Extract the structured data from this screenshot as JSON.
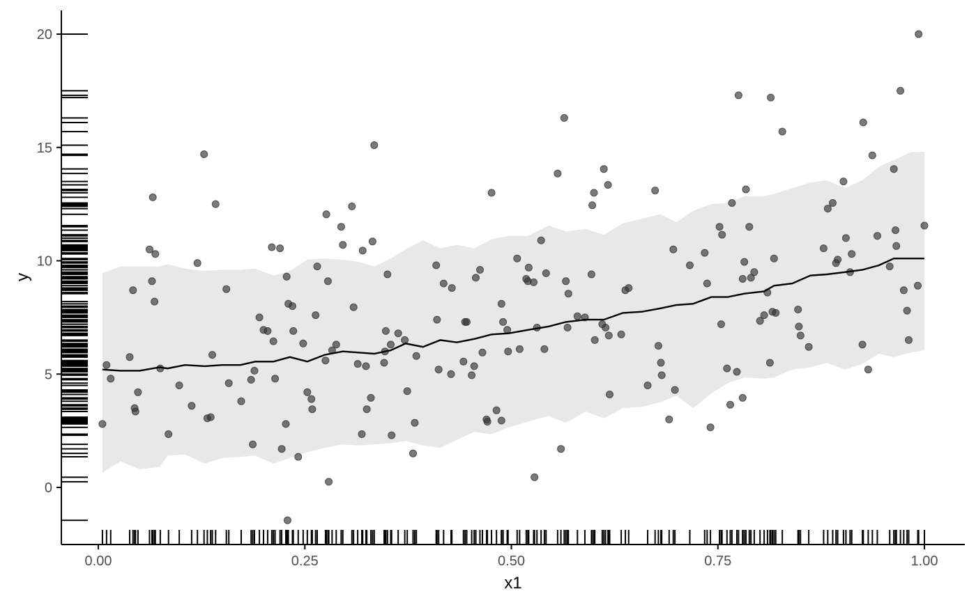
{
  "chart_data": {
    "type": "scatter",
    "title": "",
    "xlabel": "x1",
    "ylabel": "y",
    "xlim": [
      -0.04,
      1.05
    ],
    "ylim": [
      -2.5,
      21
    ],
    "x_ticks": [
      {
        "value": 0,
        "label": "0.00"
      },
      {
        "value": 0.25,
        "label": "0.25"
      },
      {
        "value": 0.5,
        "label": "0.50"
      },
      {
        "value": 0.75,
        "label": "0.75"
      },
      {
        "value": 1,
        "label": "1.00"
      }
    ],
    "y_ticks": [
      {
        "value": 0,
        "label": "0"
      },
      {
        "value": 5,
        "label": "5"
      },
      {
        "value": 10,
        "label": "10"
      },
      {
        "value": 15,
        "label": "15"
      },
      {
        "value": 20,
        "label": "20"
      }
    ],
    "grid": false,
    "legend": "none",
    "colors": {
      "points": "#333333",
      "line": "#000000",
      "band": "#e8e8e8",
      "rug": "#000000",
      "axis": "#000000"
    },
    "points": [
      [
        0.005,
        2.8
      ],
      [
        0.01,
        5.4
      ],
      [
        0.015,
        4.8
      ],
      [
        0.038,
        5.75
      ],
      [
        0.042,
        8.7
      ],
      [
        0.044,
        3.5
      ],
      [
        0.045,
        3.35
      ],
      [
        0.048,
        4.2
      ],
      [
        0.062,
        10.5
      ],
      [
        0.065,
        9.1
      ],
      [
        0.066,
        12.8
      ],
      [
        0.068,
        8.2
      ],
      [
        0.069,
        10.3
      ],
      [
        0.075,
        5.25
      ],
      [
        0.085,
        2.35
      ],
      [
        0.098,
        4.5
      ],
      [
        0.113,
        3.6
      ],
      [
        0.12,
        9.9
      ],
      [
        0.128,
        14.7
      ],
      [
        0.132,
        3.05
      ],
      [
        0.136,
        3.1
      ],
      [
        0.138,
        5.85
      ],
      [
        0.142,
        12.5
      ],
      [
        0.155,
        8.75
      ],
      [
        0.158,
        4.6
      ],
      [
        0.173,
        3.8
      ],
      [
        0.185,
        4.75
      ],
      [
        0.187,
        1.9
      ],
      [
        0.189,
        5.15
      ],
      [
        0.195,
        7.5
      ],
      [
        0.2,
        6.95
      ],
      [
        0.205,
        6.9
      ],
      [
        0.21,
        10.6
      ],
      [
        0.212,
        6.45
      ],
      [
        0.214,
        4.8
      ],
      [
        0.22,
        10.55
      ],
      [
        0.222,
        1.7
      ],
      [
        0.227,
        2.8
      ],
      [
        0.228,
        9.3
      ],
      [
        0.229,
        -1.45
      ],
      [
        0.23,
        8.1
      ],
      [
        0.235,
        8.0
      ],
      [
        0.236,
        6.9
      ],
      [
        0.242,
        1.35
      ],
      [
        0.248,
        6.35
      ],
      [
        0.253,
        4.2
      ],
      [
        0.258,
        3.9
      ],
      [
        0.259,
        3.45
      ],
      [
        0.263,
        7.6
      ],
      [
        0.265,
        9.75
      ],
      [
        0.275,
        5.6
      ],
      [
        0.276,
        12.05
      ],
      [
        0.278,
        9.1
      ],
      [
        0.279,
        0.25
      ],
      [
        0.283,
        6.05
      ],
      [
        0.288,
        6.3
      ],
      [
        0.294,
        11.5
      ],
      [
        0.296,
        10.7
      ],
      [
        0.307,
        12.4
      ],
      [
        0.309,
        7.95
      ],
      [
        0.314,
        5.45
      ],
      [
        0.319,
        2.35
      ],
      [
        0.32,
        10.45
      ],
      [
        0.324,
        5.35
      ],
      [
        0.325,
        3.45
      ],
      [
        0.332,
        10.85
      ],
      [
        0.33,
        3.95
      ],
      [
        0.334,
        15.1
      ],
      [
        0.346,
        5.5
      ],
      [
        0.347,
        6.0
      ],
      [
        0.348,
        6.9
      ],
      [
        0.35,
        9.4
      ],
      [
        0.354,
        6.3
      ],
      [
        0.355,
        2.3
      ],
      [
        0.363,
        6.8
      ],
      [
        0.371,
        6.5
      ],
      [
        0.374,
        4.25
      ],
      [
        0.381,
        1.5
      ],
      [
        0.383,
        2.85
      ],
      [
        0.385,
        5.8
      ],
      [
        0.409,
        9.8
      ],
      [
        0.41,
        7.4
      ],
      [
        0.412,
        5.2
      ],
      [
        0.418,
        9.0
      ],
      [
        0.427,
        5.0
      ],
      [
        0.428,
        8.8
      ],
      [
        0.442,
        5.55
      ],
      [
        0.444,
        7.3
      ],
      [
        0.446,
        7.3
      ],
      [
        0.452,
        4.95
      ],
      [
        0.455,
        5.35
      ],
      [
        0.457,
        9.25
      ],
      [
        0.462,
        9.6
      ],
      [
        0.465,
        5.95
      ],
      [
        0.47,
        3.0
      ],
      [
        0.471,
        2.9
      ],
      [
        0.476,
        13.0
      ],
      [
        0.482,
        3.4
      ],
      [
        0.488,
        2.95
      ],
      [
        0.488,
        8.1
      ],
      [
        0.49,
        7.3
      ],
      [
        0.495,
        6.95
      ],
      [
        0.496,
        6.0
      ],
      [
        0.507,
        10.1
      ],
      [
        0.51,
        6.1
      ],
      [
        0.518,
        9.2
      ],
      [
        0.52,
        9.1
      ],
      [
        0.521,
        9.7
      ],
      [
        0.527,
        9.05
      ],
      [
        0.528,
        0.45
      ],
      [
        0.531,
        7.05
      ],
      [
        0.536,
        10.9
      ],
      [
        0.54,
        6.1
      ],
      [
        0.542,
        9.45
      ],
      [
        0.556,
        13.85
      ],
      [
        0.56,
        1.7
      ],
      [
        0.564,
        16.3
      ],
      [
        0.566,
        9.1
      ],
      [
        0.568,
        7.05
      ],
      [
        0.569,
        8.55
      ],
      [
        0.58,
        7.55
      ],
      [
        0.589,
        7.5
      ],
      [
        0.597,
        9.4
      ],
      [
        0.598,
        12.45
      ],
      [
        0.6,
        13.0
      ],
      [
        0.601,
        6.5
      ],
      [
        0.61,
        7.2
      ],
      [
        0.612,
        14.05
      ],
      [
        0.614,
        7.05
      ],
      [
        0.617,
        13.35
      ],
      [
        0.618,
        6.7
      ],
      [
        0.619,
        4.1
      ],
      [
        0.633,
        6.75
      ],
      [
        0.638,
        8.7
      ],
      [
        0.642,
        8.8
      ],
      [
        0.665,
        4.5
      ],
      [
        0.674,
        13.1
      ],
      [
        0.678,
        6.25
      ],
      [
        0.681,
        5.5
      ],
      [
        0.682,
        4.95
      ],
      [
        0.691,
        3.0
      ],
      [
        0.696,
        10.5
      ],
      [
        0.698,
        4.3
      ],
      [
        0.716,
        9.8
      ],
      [
        0.734,
        10.35
      ],
      [
        0.737,
        9.0
      ],
      [
        0.741,
        2.65
      ],
      [
        0.752,
        11.5
      ],
      [
        0.754,
        7.2
      ],
      [
        0.755,
        11.15
      ],
      [
        0.761,
        5.25
      ],
      [
        0.765,
        3.65
      ],
      [
        0.767,
        12.55
      ],
      [
        0.773,
        5.1
      ],
      [
        0.775,
        17.3
      ],
      [
        0.78,
        3.95
      ],
      [
        0.78,
        9.2
      ],
      [
        0.782,
        9.95
      ],
      [
        0.784,
        13.15
      ],
      [
        0.788,
        11.5
      ],
      [
        0.79,
        9.25
      ],
      [
        0.794,
        9.5
      ],
      [
        0.801,
        7.35
      ],
      [
        0.806,
        7.6
      ],
      [
        0.81,
        8.6
      ],
      [
        0.813,
        5.5
      ],
      [
        0.814,
        17.2
      ],
      [
        0.816,
        7.75
      ],
      [
        0.818,
        10.1
      ],
      [
        0.82,
        7.7
      ],
      [
        0.828,
        15.7
      ],
      [
        0.847,
        7.85
      ],
      [
        0.848,
        7.1
      ],
      [
        0.85,
        6.7
      ],
      [
        0.86,
        6.2
      ],
      [
        0.878,
        10.55
      ],
      [
        0.883,
        12.3
      ],
      [
        0.889,
        12.55
      ],
      [
        0.893,
        9.9
      ],
      [
        0.895,
        10.05
      ],
      [
        0.902,
        13.5
      ],
      [
        0.905,
        11.0
      ],
      [
        0.91,
        9.5
      ],
      [
        0.912,
        10.3
      ],
      [
        0.925,
        6.3
      ],
      [
        0.926,
        16.1
      ],
      [
        0.932,
        5.2
      ],
      [
        0.937,
        14.65
      ],
      [
        0.943,
        11.1
      ],
      [
        0.958,
        9.75
      ],
      [
        0.963,
        14.05
      ],
      [
        0.966,
        10.65
      ],
      [
        0.965,
        11.35
      ],
      [
        0.971,
        17.5
      ],
      [
        0.975,
        8.7
      ],
      [
        0.979,
        7.8
      ],
      [
        0.981,
        6.5
      ],
      [
        0.992,
        8.9
      ],
      [
        0.993,
        20.0
      ],
      [
        1.0,
        11.55
      ]
    ],
    "trend_line": [
      [
        0.005,
        5.2
      ],
      [
        0.027,
        5.15
      ],
      [
        0.05,
        5.15
      ],
      [
        0.074,
        5.3
      ],
      [
        0.084,
        5.25
      ],
      [
        0.105,
        5.4
      ],
      [
        0.129,
        5.35
      ],
      [
        0.15,
        5.4
      ],
      [
        0.172,
        5.4
      ],
      [
        0.19,
        5.55
      ],
      [
        0.212,
        5.55
      ],
      [
        0.232,
        5.75
      ],
      [
        0.253,
        5.55
      ],
      [
        0.274,
        5.85
      ],
      [
        0.296,
        6.0
      ],
      [
        0.315,
        5.95
      ],
      [
        0.334,
        5.9
      ],
      [
        0.354,
        6.05
      ],
      [
        0.372,
        6.35
      ],
      [
        0.393,
        6.2
      ],
      [
        0.414,
        6.5
      ],
      [
        0.434,
        6.4
      ],
      [
        0.455,
        6.55
      ],
      [
        0.476,
        6.75
      ],
      [
        0.497,
        6.8
      ],
      [
        0.52,
        6.95
      ],
      [
        0.545,
        7.1
      ],
      [
        0.566,
        7.3
      ],
      [
        0.59,
        7.4
      ],
      [
        0.612,
        7.4
      ],
      [
        0.635,
        7.7
      ],
      [
        0.658,
        7.75
      ],
      [
        0.68,
        7.9
      ],
      [
        0.7,
        8.05
      ],
      [
        0.72,
        8.1
      ],
      [
        0.742,
        8.4
      ],
      [
        0.762,
        8.4
      ],
      [
        0.782,
        8.55
      ],
      [
        0.806,
        8.65
      ],
      [
        0.818,
        8.9
      ],
      [
        0.84,
        9.0
      ],
      [
        0.862,
        9.35
      ],
      [
        0.882,
        9.4
      ],
      [
        0.904,
        9.5
      ],
      [
        0.925,
        9.6
      ],
      [
        0.945,
        9.8
      ],
      [
        0.963,
        10.1
      ],
      [
        0.984,
        10.1
      ],
      [
        1.0,
        10.1
      ]
    ],
    "band_upper": [
      [
        0.005,
        9.45
      ],
      [
        0.027,
        9.75
      ],
      [
        0.05,
        9.75
      ],
      [
        0.074,
        9.75
      ],
      [
        0.084,
        9.85
      ],
      [
        0.105,
        9.65
      ],
      [
        0.129,
        9.55
      ],
      [
        0.15,
        9.6
      ],
      [
        0.172,
        9.6
      ],
      [
        0.19,
        9.65
      ],
      [
        0.212,
        9.35
      ],
      [
        0.232,
        9.55
      ],
      [
        0.253,
        10.05
      ],
      [
        0.274,
        10.1
      ],
      [
        0.296,
        10.05
      ],
      [
        0.315,
        9.95
      ],
      [
        0.334,
        9.75
      ],
      [
        0.354,
        10.1
      ],
      [
        0.372,
        10.5
      ],
      [
        0.393,
        10.9
      ],
      [
        0.414,
        10.55
      ],
      [
        0.434,
        10.7
      ],
      [
        0.455,
        10.55
      ],
      [
        0.476,
        10.95
      ],
      [
        0.497,
        11.1
      ],
      [
        0.52,
        11.1
      ],
      [
        0.545,
        11.55
      ],
      [
        0.566,
        11.3
      ],
      [
        0.59,
        11.4
      ],
      [
        0.612,
        11.15
      ],
      [
        0.635,
        11.65
      ],
      [
        0.658,
        11.85
      ],
      [
        0.68,
        12.05
      ],
      [
        0.7,
        11.7
      ],
      [
        0.72,
        12.2
      ],
      [
        0.742,
        12.5
      ],
      [
        0.762,
        12.55
      ],
      [
        0.782,
        12.85
      ],
      [
        0.806,
        12.85
      ],
      [
        0.818,
        12.95
      ],
      [
        0.84,
        13.2
      ],
      [
        0.862,
        13.45
      ],
      [
        0.882,
        13.55
      ],
      [
        0.904,
        13.2
      ],
      [
        0.925,
        13.55
      ],
      [
        0.945,
        14.15
      ],
      [
        0.963,
        14.45
      ],
      [
        0.984,
        14.8
      ],
      [
        1.0,
        14.8
      ]
    ],
    "band_lower": [
      [
        0.005,
        0.65
      ],
      [
        0.027,
        1.15
      ],
      [
        0.05,
        0.8
      ],
      [
        0.074,
        0.9
      ],
      [
        0.084,
        1.4
      ],
      [
        0.105,
        1.45
      ],
      [
        0.129,
        1.05
      ],
      [
        0.15,
        1.3
      ],
      [
        0.172,
        1.35
      ],
      [
        0.19,
        1.4
      ],
      [
        0.212,
        1.05
      ],
      [
        0.232,
        1.3
      ],
      [
        0.253,
        1.55
      ],
      [
        0.274,
        1.75
      ],
      [
        0.296,
        1.9
      ],
      [
        0.315,
        1.85
      ],
      [
        0.334,
        1.9
      ],
      [
        0.354,
        1.95
      ],
      [
        0.372,
        2.05
      ],
      [
        0.393,
        1.85
      ],
      [
        0.414,
        1.75
      ],
      [
        0.434,
        2.1
      ],
      [
        0.455,
        2.45
      ],
      [
        0.476,
        2.35
      ],
      [
        0.497,
        2.65
      ],
      [
        0.52,
        2.9
      ],
      [
        0.545,
        3.15
      ],
      [
        0.566,
        2.85
      ],
      [
        0.59,
        3.35
      ],
      [
        0.612,
        3.05
      ],
      [
        0.635,
        3.5
      ],
      [
        0.658,
        3.55
      ],
      [
        0.68,
        3.75
      ],
      [
        0.7,
        4.05
      ],
      [
        0.72,
        3.5
      ],
      [
        0.742,
        4.15
      ],
      [
        0.762,
        4.6
      ],
      [
        0.782,
        4.85
      ],
      [
        0.806,
        4.8
      ],
      [
        0.818,
        4.85
      ],
      [
        0.84,
        5.2
      ],
      [
        0.862,
        5.3
      ],
      [
        0.882,
        5.5
      ],
      [
        0.904,
        5.2
      ],
      [
        0.925,
        5.45
      ],
      [
        0.945,
        5.9
      ],
      [
        0.963,
        5.75
      ],
      [
        0.984,
        5.95
      ],
      [
        1.0,
        6.05
      ]
    ],
    "rug_y": [
      -1.45,
      0.25,
      0.45,
      1.35,
      1.5,
      1.7,
      1.9,
      2.3,
      2.35,
      2.65,
      2.8,
      2.85,
      2.9,
      2.95,
      3.0,
      3.05,
      3.1,
      3.35,
      3.45,
      3.5,
      3.6,
      3.65,
      3.8,
      3.9,
      3.95,
      4.1,
      4.2,
      4.25,
      4.3,
      4.5,
      4.6,
      4.75,
      4.8,
      4.95,
      5.0,
      5.1,
      5.15,
      5.2,
      5.25,
      5.35,
      5.4,
      5.45,
      5.5,
      5.55,
      5.6,
      5.75,
      5.8,
      5.85,
      5.95,
      6.0,
      6.05,
      6.1,
      6.2,
      6.25,
      6.3,
      6.35,
      6.45,
      6.5,
      6.7,
      6.75,
      6.8,
      6.9,
      6.95,
      7.05,
      7.1,
      7.2,
      7.3,
      7.35,
      7.4,
      7.5,
      7.55,
      7.6,
      7.7,
      7.75,
      7.8,
      7.85,
      7.95,
      8.0,
      8.1,
      8.2,
      8.55,
      8.6,
      8.7,
      8.75,
      8.8,
      8.9,
      9.0,
      9.05,
      9.1,
      9.2,
      9.25,
      9.3,
      9.4,
      9.45,
      9.5,
      9.6,
      9.7,
      9.75,
      9.8,
      9.9,
      9.95,
      10.05,
      10.1,
      10.3,
      10.35,
      10.45,
      10.5,
      10.55,
      10.6,
      10.65,
      10.7,
      10.85,
      10.9,
      11.0,
      11.1,
      11.15,
      11.35,
      11.5,
      11.55,
      12.05,
      12.3,
      12.4,
      12.45,
      12.5,
      12.55,
      12.8,
      13.0,
      13.1,
      13.15,
      13.35,
      13.5,
      13.85,
      14.05,
      14.65,
      14.7,
      15.1,
      15.7,
      16.1,
      16.3,
      17.2,
      17.3,
      17.5,
      20.0
    ]
  }
}
